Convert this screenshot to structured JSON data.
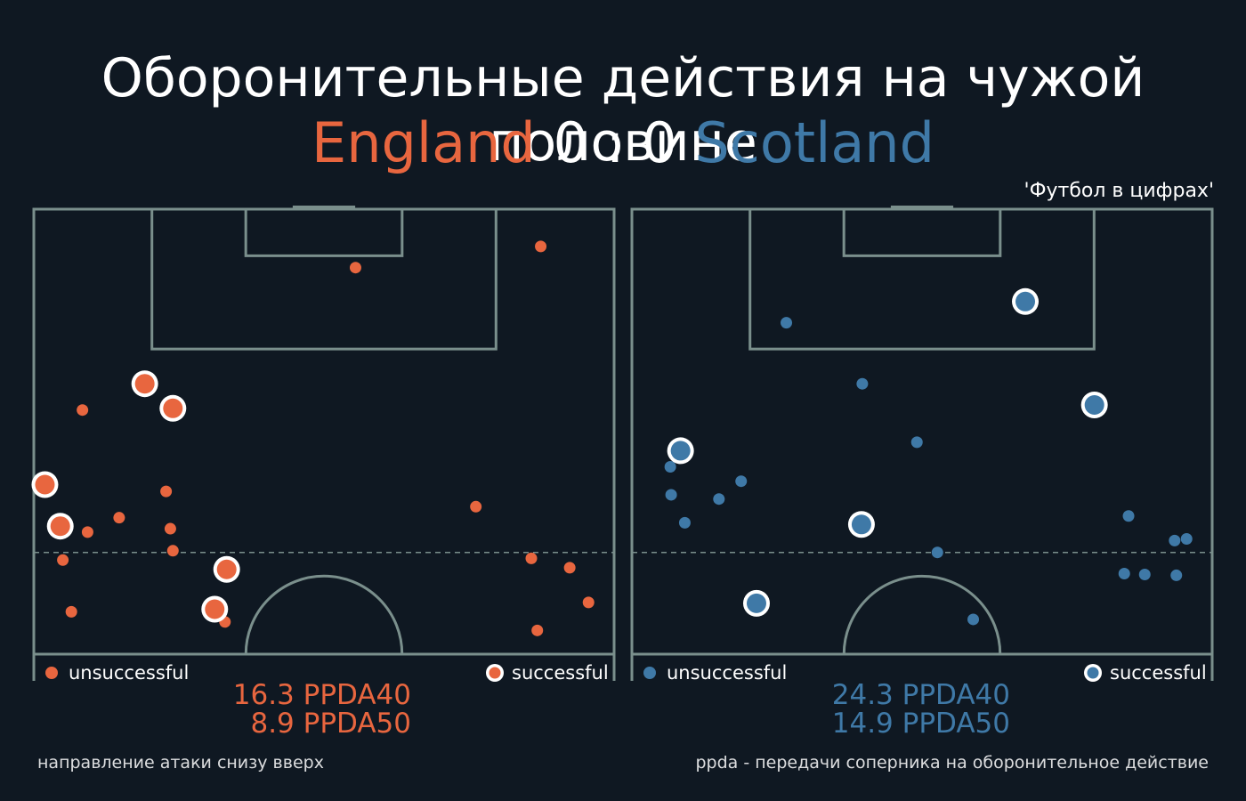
{
  "title": "Оборонительные действия на чужой половине",
  "match": {
    "home_team": "England",
    "score_home": "0",
    "separator": ":",
    "score_away": "0",
    "away_team": "Scotland"
  },
  "credit": "'Футбол в цифрах'",
  "colors": {
    "background": "#0f1822",
    "pitch_lines": "#7a8f8c",
    "home": "#e8663f",
    "away": "#3f79a7",
    "successful_ring": "#ffffff"
  },
  "legend": {
    "unsuccessful": "unsuccessful",
    "successful": "successful"
  },
  "ppda": {
    "home": {
      "ppda40": "16.3 PPDA40",
      "ppda50": "8.9 PPDA50"
    },
    "away": {
      "ppda40": "24.3 PPDA40",
      "ppda50": "14.9 PPDA50"
    }
  },
  "footnotes": {
    "direction": "направление атаки снизу вверх",
    "definition": "ppda - передачи соперника на оборонительное действие"
  },
  "chart_data": [
    {
      "type": "scatter",
      "team": "England",
      "xlim": [
        0,
        68
      ],
      "ylim": [
        52.5,
        105
      ],
      "series": [
        {
          "name": "unsuccessful",
          "points": [
            [
              37.7,
              98.1
            ],
            [
              59.4,
              100.6
            ],
            [
              5.7,
              81.3
            ],
            [
              15.5,
              71.7
            ],
            [
              16.0,
              67.3
            ],
            [
              10.0,
              68.6
            ],
            [
              6.3,
              66.9
            ],
            [
              3.4,
              63.6
            ],
            [
              16.3,
              64.7
            ],
            [
              4.4,
              57.5
            ],
            [
              51.8,
              69.9
            ],
            [
              58.3,
              63.8
            ],
            [
              62.8,
              62.7
            ],
            [
              65.0,
              58.6
            ],
            [
              59.0,
              55.3
            ],
            [
              22.4,
              56.3
            ]
          ]
        },
        {
          "name": "successful",
          "points": [
            [
              13.0,
              84.4
            ],
            [
              16.3,
              81.5
            ],
            [
              1.3,
              72.5
            ],
            [
              3.1,
              67.6
            ],
            [
              22.6,
              62.5
            ],
            [
              21.2,
              57.8
            ]
          ]
        }
      ]
    },
    {
      "type": "scatter",
      "team": "Scotland",
      "xlim": [
        0,
        68
      ],
      "ylim": [
        52.5,
        105
      ],
      "series": [
        {
          "name": "unsuccessful",
          "points": [
            [
              18.1,
              91.6
            ],
            [
              27.0,
              84.4
            ],
            [
              33.4,
              77.5
            ],
            [
              12.8,
              72.9
            ],
            [
              10.2,
              70.8
            ],
            [
              4.6,
              71.3
            ],
            [
              4.5,
              74.6
            ],
            [
              6.2,
              68.0
            ],
            [
              35.8,
              64.5
            ],
            [
              58.2,
              68.8
            ],
            [
              63.6,
              65.9
            ],
            [
              65.0,
              66.1
            ],
            [
              57.7,
              62.0
            ],
            [
              60.1,
              61.9
            ],
            [
              63.8,
              61.8
            ],
            [
              40.0,
              56.6
            ]
          ]
        },
        {
          "name": "successful",
          "points": [
            [
              46.1,
              94.1
            ],
            [
              54.2,
              81.9
            ],
            [
              5.7,
              76.5
            ],
            [
              26.9,
              67.8
            ],
            [
              14.6,
              58.5
            ]
          ]
        }
      ]
    }
  ]
}
